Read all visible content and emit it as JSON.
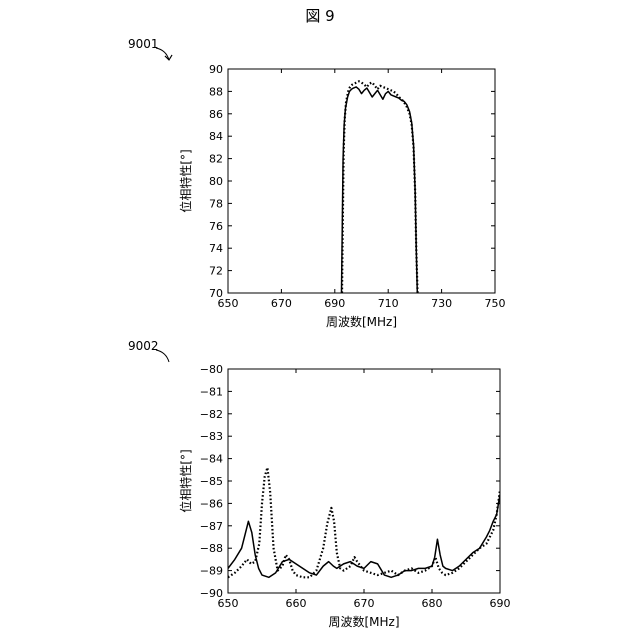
{
  "figure_title": "図 9",
  "chart_data": [
    {
      "type": "line",
      "ref_label": "9001",
      "xlabel": "周波数[MHz]",
      "ylabel": "位相特性[°]",
      "xlim": [
        650,
        750
      ],
      "ylim": [
        70,
        90
      ],
      "xticks": [
        650,
        670,
        690,
        710,
        730,
        750
      ],
      "yticks": [
        70,
        72,
        74,
        76,
        78,
        80,
        82,
        84,
        86,
        88,
        90
      ],
      "grid": false,
      "series": [
        {
          "style": "solid",
          "color": "#000000",
          "x": [
            692.5,
            692.8,
            693.1,
            693.5,
            694,
            694.8,
            695.5,
            696.3,
            697,
            698,
            699,
            700,
            701,
            702,
            703,
            704,
            705,
            706,
            707,
            708,
            709,
            710,
            711,
            712,
            713,
            714,
            715,
            716,
            717,
            718,
            718.8,
            719.5,
            720.1,
            720.5,
            720.9
          ],
          "y": [
            70,
            76,
            82,
            85,
            86.5,
            87.5,
            88,
            88.2,
            88.3,
            88.4,
            88.2,
            87.8,
            88.1,
            88.3,
            87.9,
            87.5,
            87.8,
            88.1,
            87.7,
            87.3,
            87.8,
            88,
            87.7,
            87.6,
            87.5,
            87.4,
            87.2,
            87.1,
            86.8,
            86.2,
            85.2,
            83.2,
            79,
            74,
            70
          ]
        },
        {
          "style": "dotted",
          "color": "#000000",
          "x": [
            692.7,
            693,
            693.3,
            693.7,
            694.2,
            695,
            695.7,
            696.5,
            697.3,
            698.2,
            699,
            700,
            701,
            702,
            703,
            704,
            705,
            706,
            707,
            708,
            709,
            710,
            711,
            712,
            713,
            714,
            715,
            716,
            717,
            718,
            718.8,
            719.5,
            720.1,
            720.5,
            721
          ],
          "y": [
            70,
            76.5,
            82.5,
            85.5,
            87,
            88,
            88.4,
            88.6,
            88.7,
            88.8,
            88.9,
            88.8,
            88.6,
            88.4,
            88.7,
            88.8,
            88.5,
            88.2,
            88.5,
            88.4,
            88.3,
            88.2,
            88.1,
            88,
            87.8,
            87.5,
            87.3,
            87,
            86.6,
            86,
            85,
            83,
            79,
            74,
            70
          ]
        }
      ]
    },
    {
      "type": "line",
      "ref_label": "9002",
      "xlabel": "周波数[MHz]",
      "ylabel": "位相特性[°]",
      "xlim": [
        650,
        690
      ],
      "ylim": [
        -90,
        -80
      ],
      "xticks": [
        650,
        660,
        670,
        680,
        690
      ],
      "yticks": [
        -80,
        -81,
        -82,
        -83,
        -84,
        -85,
        -86,
        -87,
        -88,
        -89,
        -90
      ],
      "grid": false,
      "series": [
        {
          "style": "solid",
          "color": "#000000",
          "x": [
            650,
            651,
            652,
            652.5,
            653,
            653.5,
            654,
            654.5,
            655,
            656,
            657,
            658,
            659,
            660,
            661,
            662,
            663,
            664,
            664.8,
            665.5,
            666,
            667,
            668,
            669,
            670,
            671,
            672,
            673,
            674,
            675,
            676,
            677,
            678,
            679,
            680,
            680.4,
            680.8,
            681.2,
            681.6,
            682,
            683,
            684,
            685,
            686,
            687,
            688,
            688.5,
            689,
            689.5,
            690
          ],
          "y": [
            -88.9,
            -88.5,
            -88,
            -87.4,
            -86.8,
            -87.3,
            -88.3,
            -88.9,
            -89.2,
            -89.3,
            -89.1,
            -88.6,
            -88.5,
            -88.7,
            -88.9,
            -89.1,
            -89.2,
            -88.8,
            -88.6,
            -88.8,
            -88.9,
            -88.7,
            -88.6,
            -88.8,
            -88.9,
            -88.6,
            -88.7,
            -89.2,
            -89.3,
            -89.2,
            -89,
            -89,
            -88.9,
            -88.9,
            -88.8,
            -88.4,
            -87.6,
            -88.3,
            -88.8,
            -88.9,
            -89,
            -88.8,
            -88.5,
            -88.2,
            -88,
            -87.5,
            -87.2,
            -86.8,
            -86.5,
            -85.6
          ]
        },
        {
          "style": "dotted",
          "color": "#000000",
          "x": [
            650,
            651,
            652,
            652.8,
            653.4,
            654,
            654.6,
            655,
            655.4,
            655.8,
            656.2,
            656.7,
            657.3,
            658,
            658.5,
            659,
            659.5,
            660,
            661,
            662,
            663,
            664,
            664.6,
            665.2,
            665.6,
            666,
            666.5,
            667,
            668,
            668.6,
            669,
            670,
            671,
            672,
            673,
            674,
            675,
            676,
            677,
            678,
            679,
            680,
            680.5,
            681,
            681.5,
            682,
            683,
            684,
            685,
            686,
            687,
            688,
            689,
            689.5,
            690
          ],
          "y": [
            -89.3,
            -89.1,
            -88.8,
            -88.5,
            -88.7,
            -88.6,
            -87.8,
            -86,
            -84.8,
            -84.4,
            -85.5,
            -88,
            -89,
            -88.8,
            -88.3,
            -88.5,
            -89,
            -89.2,
            -89.3,
            -89.3,
            -89,
            -88,
            -86.9,
            -86.2,
            -86.8,
            -88.2,
            -88.9,
            -89,
            -88.8,
            -88.4,
            -88.6,
            -89,
            -89.1,
            -89.2,
            -89.1,
            -89,
            -89.2,
            -89,
            -88.9,
            -89.1,
            -89,
            -88.8,
            -88.4,
            -88.9,
            -89.1,
            -89.2,
            -89.1,
            -88.9,
            -88.6,
            -88.3,
            -88,
            -87.8,
            -87.2,
            -86.5,
            -85.4
          ]
        }
      ]
    }
  ]
}
